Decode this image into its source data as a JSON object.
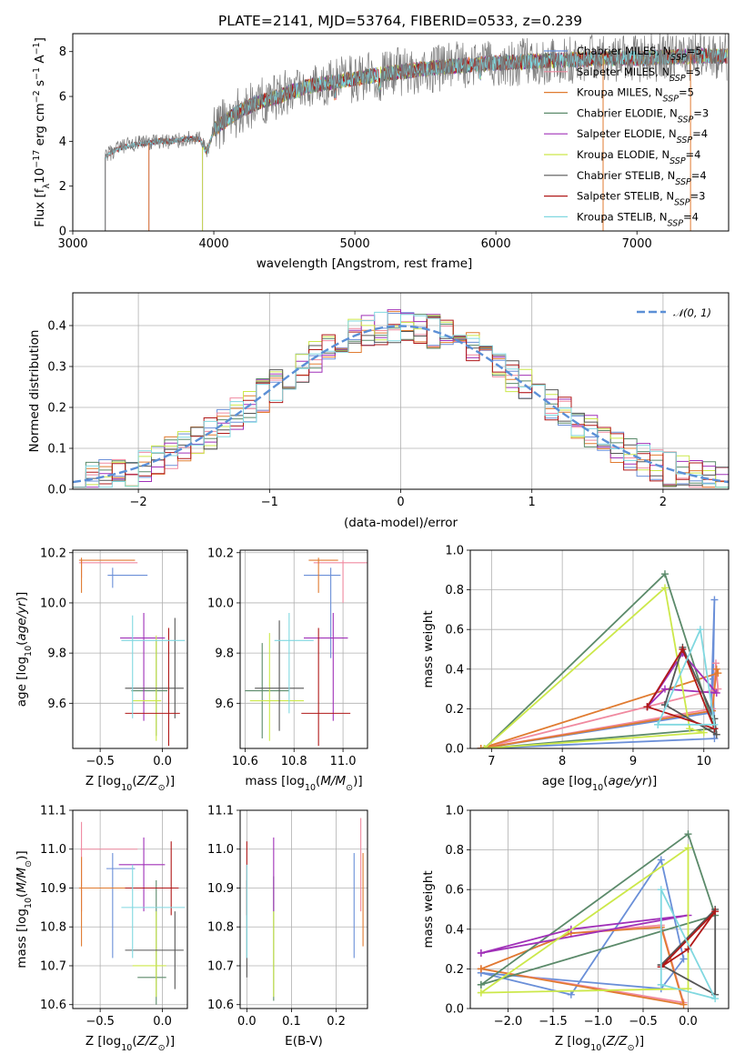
{
  "figure": {
    "title": "PLATE=2141, MJD=53764, FIBERID=0533, z=0.239"
  },
  "colors": {
    "Chabrier MILES": "#6a8fd8",
    "Salpeter MILES": "#f08aa0",
    "Kroupa MILES": "#e07b30",
    "Chabrier ELODIE": "#5b8a6a",
    "Salpeter ELODIE": "#a030b8",
    "Kroupa ELODIE": "#cce84a",
    "Chabrier STELIB": "#555555",
    "Salpeter STELIB": "#b01818",
    "Kroupa STELIB": "#80d8e0",
    "data": "#7a7a7a",
    "normal": "#5b8fd6"
  },
  "chart_data": [
    {
      "id": "spectrum",
      "type": "line",
      "title": "PLATE=2141, MJD=53764, FIBERID=0533, z=0.239",
      "xlabel": "wavelength [Angstrom, rest frame]",
      "ylabel": "Flux [f_λ 10^-17 erg cm^-2 s^-1 A^-1]",
      "xlim": [
        3000,
        7650
      ],
      "ylim": [
        0,
        8.8
      ],
      "xticks": [
        "3000",
        "4000",
        "5000",
        "6000",
        "7000"
      ],
      "yticks": [
        "0",
        "2",
        "4",
        "6",
        "8"
      ],
      "grid": false,
      "legend_position": "right",
      "legend": [
        "Chabrier MILES, N_SSP=5",
        "Salpeter MILES, N_SSP=5",
        "Kroupa MILES, N_SSP=5",
        "Chabrier ELODIE, N_SSP=3",
        "Salpeter ELODIE, N_SSP=4",
        "Kroupa ELODIE, N_SSP=4",
        "Chabrier STELIB, N_SSP=4",
        "Salpeter STELIB, N_SSP=3",
        "Kroupa STELIB, N_SSP=4"
      ],
      "continuum": {
        "wavelength": [
          3230,
          3300,
          3400,
          3500,
          3600,
          3700,
          3800,
          3900,
          3950,
          4000,
          4100,
          4200,
          4300,
          4400,
          4500,
          4600,
          4700,
          4800,
          4900,
          5000,
          5200,
          5400,
          5600,
          5800,
          6000,
          6200,
          6400,
          6600,
          6800,
          7000,
          7200,
          7400,
          7600
        ],
        "flux": [
          3.3,
          3.6,
          3.8,
          3.9,
          4.0,
          4.0,
          4.1,
          4.1,
          3.5,
          4.5,
          5.0,
          5.4,
          5.7,
          5.9,
          6.1,
          6.3,
          6.5,
          6.6,
          6.7,
          6.8,
          7.0,
          7.15,
          7.3,
          7.4,
          7.5,
          7.55,
          7.6,
          7.65,
          7.7,
          7.7,
          7.75,
          7.8,
          7.8
        ]
      },
      "model_starts": [
        {
          "series": "Chabrier MILES",
          "start": 3540
        },
        {
          "series": "Salpeter MILES",
          "start": 3540
        },
        {
          "series": "Kroupa MILES",
          "start": 3540
        },
        {
          "series": "Chabrier ELODIE",
          "start": 3920
        },
        {
          "series": "Salpeter ELODIE",
          "start": 3920
        },
        {
          "series": "Kroupa ELODIE",
          "start": 3920
        },
        {
          "series": "Chabrier STELIB",
          "start": 3230
        },
        {
          "series": "Salpeter STELIB",
          "start": 3230
        },
        {
          "series": "Kroupa STELIB",
          "start": 3230
        }
      ]
    },
    {
      "id": "residuals",
      "type": "histogram",
      "xlabel": "(data-model)/error",
      "ylabel": "Normed distribution",
      "xlim": [
        -2.5,
        2.5
      ],
      "ylim": [
        0,
        0.48
      ],
      "xticks": [
        "−2",
        "−1",
        "0",
        "1",
        "2"
      ],
      "yticks": [
        "0.0",
        "0.1",
        "0.2",
        "0.3",
        "0.4"
      ],
      "grid": true,
      "legend_position": "top-right",
      "legend": [
        "𝒩(0, 1)"
      ],
      "bins": {
        "start": -2.5,
        "width": 0.1,
        "count": 50
      }
    },
    {
      "id": "age-vs-Z",
      "type": "errorbar",
      "xlabel": "Z [log10(Z/Z⊙)]",
      "ylabel": "age  [log10(age/yr)]",
      "xlim": [
        -0.72,
        0.2
      ],
      "ylim": [
        9.42,
        10.21
      ],
      "xticks": [
        "−0.5",
        "0.0"
      ],
      "xtick_values": [
        -0.5,
        0.0
      ],
      "yticks": [
        "9.6",
        "9.8",
        "10.0",
        "10.2"
      ],
      "ytick_values": [
        9.6,
        9.8,
        10.0,
        10.2
      ],
      "grid": true,
      "points": [
        {
          "series": "Chabrier MILES",
          "x": -0.4,
          "y": 10.11,
          "x_lo": -0.44,
          "x_hi": -0.12,
          "y_lo": 10.06,
          "y_hi": 10.14
        },
        {
          "series": "Salpeter MILES",
          "x": -0.65,
          "y": 10.16,
          "x_lo": -0.67,
          "x_hi": -0.2,
          "y_lo": 10.1,
          "y_hi": 10.17
        },
        {
          "series": "Kroupa MILES",
          "x": -0.65,
          "y": 10.17,
          "x_lo": -0.67,
          "x_hi": -0.22,
          "y_lo": 10.04,
          "y_hi": 10.18
        },
        {
          "series": "Chabrier ELODIE",
          "x": -0.05,
          "y": 9.65,
          "x_lo": -0.25,
          "x_hi": 0.04,
          "y_lo": 9.47,
          "y_hi": 9.85
        },
        {
          "series": "Salpeter ELODIE",
          "x": -0.15,
          "y": 9.86,
          "x_lo": -0.34,
          "x_hi": 0.02,
          "y_lo": 9.53,
          "y_hi": 9.96
        },
        {
          "series": "Kroupa ELODIE",
          "x": -0.05,
          "y": 9.61,
          "x_lo": -0.24,
          "x_hi": -0.01,
          "y_lo": 9.45,
          "y_hi": 9.87
        },
        {
          "series": "Chabrier STELIB",
          "x": 0.1,
          "y": 9.66,
          "x_lo": -0.3,
          "x_hi": 0.17,
          "y_lo": 9.54,
          "y_hi": 9.94
        },
        {
          "series": "Salpeter STELIB",
          "x": 0.05,
          "y": 9.56,
          "x_lo": -0.3,
          "x_hi": 0.14,
          "y_lo": 9.43,
          "y_hi": 9.9
        },
        {
          "series": "Kroupa STELIB",
          "x": -0.24,
          "y": 9.85,
          "x_lo": -0.33,
          "x_hi": 0.18,
          "y_lo": 9.54,
          "y_hi": 9.95
        }
      ]
    },
    {
      "id": "age-vs-mass",
      "type": "errorbar",
      "xlabel": "mass [log10(M/M⊙)]",
      "xlim": [
        10.58,
        11.1
      ],
      "ylim": [
        9.42,
        10.21
      ],
      "xticks": [
        "10.6",
        "10.8",
        "11.0"
      ],
      "xtick_values": [
        10.6,
        10.8,
        11.0
      ],
      "yticks": [
        "9.6",
        "9.8",
        "10.0",
        "10.2"
      ],
      "ytick_values": [
        9.6,
        9.8,
        10.0,
        10.2
      ],
      "grid": true,
      "points": [
        {
          "series": "Chabrier MILES",
          "x": 10.95,
          "y": 10.11,
          "x_lo": 10.84,
          "x_hi": 10.99,
          "y_lo": 9.78,
          "y_hi": 10.14
        },
        {
          "series": "Salpeter MILES",
          "x": 11.0,
          "y": 10.16,
          "x_lo": 10.88,
          "x_hi": 11.1,
          "y_lo": 10.0,
          "y_hi": 10.17
        },
        {
          "series": "Kroupa MILES",
          "x": 10.9,
          "y": 10.17,
          "x_lo": 10.86,
          "x_hi": 10.98,
          "y_lo": 10.04,
          "y_hi": 10.18
        },
        {
          "series": "Chabrier ELODIE",
          "x": 10.67,
          "y": 9.65,
          "x_lo": 10.6,
          "x_hi": 10.78,
          "y_lo": 9.46,
          "y_hi": 9.84
        },
        {
          "series": "Salpeter ELODIE",
          "x": 10.96,
          "y": 9.86,
          "x_lo": 10.84,
          "x_hi": 11.02,
          "y_lo": 9.53,
          "y_hi": 9.96
        },
        {
          "series": "Kroupa ELODIE",
          "x": 10.7,
          "y": 9.61,
          "x_lo": 10.62,
          "x_hi": 10.84,
          "y_lo": 9.45,
          "y_hi": 9.88
        },
        {
          "series": "Chabrier STELIB",
          "x": 10.74,
          "y": 9.66,
          "x_lo": 10.64,
          "x_hi": 10.84,
          "y_lo": 9.49,
          "y_hi": 9.93
        },
        {
          "series": "Salpeter STELIB",
          "x": 10.9,
          "y": 9.56,
          "x_lo": 10.83,
          "x_hi": 11.03,
          "y_lo": 9.43,
          "y_hi": 9.9
        },
        {
          "series": "Kroupa STELIB",
          "x": 10.78,
          "y": 9.85,
          "x_lo": 10.72,
          "x_hi": 10.88,
          "y_lo": 9.56,
          "y_hi": 9.96
        }
      ]
    },
    {
      "id": "weight-vs-age",
      "type": "line",
      "xlabel": "age  [log10(age/yr)]",
      "ylabel": "mass weight",
      "xlim": [
        6.7,
        10.35
      ],
      "ylim": [
        0,
        1.0
      ],
      "xticks": [
        "7",
        "8",
        "9",
        "10"
      ],
      "xtick_values": [
        7,
        8,
        9,
        10
      ],
      "yticks": [
        "0.0",
        "0.2",
        "0.4",
        "0.6",
        "0.8",
        "1.0"
      ],
      "ytick_values": [
        0,
        0.2,
        0.4,
        0.6,
        0.8,
        1.0
      ],
      "grid": true,
      "series": [
        {
          "series": "Chabrier MILES",
          "x": [
            6.85,
            10.1,
            10.15,
            10.13,
            10.15,
            6.85
          ],
          "y": [
            0.0,
            0.18,
            0.75,
            0.35,
            0.05,
            0.0
          ]
        },
        {
          "series": "Salpeter MILES",
          "x": [
            6.85,
            10.12,
            10.17,
            10.2,
            6.85
          ],
          "y": [
            0.0,
            0.2,
            0.43,
            0.3,
            0.0
          ]
        },
        {
          "series": "Kroupa MILES",
          "x": [
            6.85,
            10.12,
            10.18,
            10.2,
            6.85
          ],
          "y": [
            0.0,
            0.19,
            0.4,
            0.38,
            0.0
          ]
        },
        {
          "series": "Chabrier ELODIE",
          "x": [
            6.9,
            9.45,
            10.15,
            6.9
          ],
          "y": [
            0.0,
            0.88,
            0.1,
            0.0
          ]
        },
        {
          "series": "Salpeter ELODIE",
          "x": [
            9.2,
            9.7,
            10.18,
            9.45,
            9.2
          ],
          "y": [
            0.21,
            0.48,
            0.28,
            0.3,
            0.21
          ]
        },
        {
          "series": "Kroupa ELODIE",
          "x": [
            6.9,
            9.45,
            9.8,
            10.0,
            6.9
          ],
          "y": [
            0.0,
            0.81,
            0.1,
            0.08,
            0.0
          ]
        },
        {
          "series": "Chabrier STELIB",
          "x": [
            9.45,
            9.7,
            10.15,
            10.18,
            9.45
          ],
          "y": [
            0.22,
            0.51,
            0.15,
            0.07,
            0.22
          ]
        },
        {
          "series": "Salpeter STELIB",
          "x": [
            9.2,
            9.7,
            10.15,
            9.2
          ],
          "y": [
            0.21,
            0.5,
            0.1,
            0.21
          ]
        },
        {
          "series": "Kroupa STELIB",
          "x": [
            9.35,
            9.95,
            10.15,
            9.35
          ],
          "y": [
            0.12,
            0.6,
            0.12,
            0.12
          ]
        }
      ]
    },
    {
      "id": "mass-vs-Z",
      "type": "errorbar",
      "xlabel": "Z [log10(Z/Z⊙)]",
      "ylabel": "mass [log10(M/M⊙)]",
      "xlim": [
        -0.72,
        0.2
      ],
      "ylim": [
        10.59,
        11.1
      ],
      "xticks": [
        "−0.5",
        "0.0"
      ],
      "xtick_values": [
        -0.5,
        0.0
      ],
      "yticks": [
        "10.6",
        "10.7",
        "10.8",
        "10.9",
        "11.0",
        "11.1"
      ],
      "ytick_values": [
        10.6,
        10.7,
        10.8,
        10.9,
        11.0,
        11.1
      ],
      "grid": true,
      "points": [
        {
          "series": "Chabrier MILES",
          "x": -0.4,
          "y": 10.95,
          "x_lo": -0.45,
          "x_hi": -0.22,
          "y_lo": 10.72,
          "y_hi": 10.99
        },
        {
          "series": "Salpeter MILES",
          "x": -0.65,
          "y": 11.0,
          "x_lo": -0.66,
          "x_hi": -0.2,
          "y_lo": 10.84,
          "y_hi": 11.07
        },
        {
          "series": "Kroupa MILES",
          "x": -0.65,
          "y": 10.9,
          "x_lo": -0.67,
          "x_hi": -0.2,
          "y_lo": 10.75,
          "y_hi": 10.98
        },
        {
          "series": "Chabrier ELODIE",
          "x": -0.05,
          "y": 10.67,
          "x_lo": -0.2,
          "x_hi": 0.03,
          "y_lo": 10.6,
          "y_hi": 10.92
        },
        {
          "series": "Salpeter ELODIE",
          "x": -0.15,
          "y": 10.96,
          "x_lo": -0.35,
          "x_hi": 0.02,
          "y_lo": 10.84,
          "y_hi": 11.03
        },
        {
          "series": "Kroupa ELODIE",
          "x": -0.05,
          "y": 10.7,
          "x_lo": -0.24,
          "x_hi": 0.03,
          "y_lo": 10.62,
          "y_hi": 10.84
        },
        {
          "series": "Chabrier STELIB",
          "x": 0.1,
          "y": 10.74,
          "x_lo": -0.3,
          "x_hi": 0.17,
          "y_lo": 10.64,
          "y_hi": 10.84
        },
        {
          "series": "Salpeter STELIB",
          "x": 0.07,
          "y": 10.9,
          "x_lo": -0.3,
          "x_hi": 0.13,
          "y_lo": 10.83,
          "y_hi": 11.02
        },
        {
          "series": "Kroupa STELIB",
          "x": -0.24,
          "y": 10.85,
          "x_lo": -0.33,
          "x_hi": 0.18,
          "y_lo": 10.72,
          "y_hi": 10.96
        }
      ]
    },
    {
      "id": "mass-vs-EBV",
      "type": "errorbar",
      "xlabel": "E(B-V)",
      "xlim": [
        -0.015,
        0.27
      ],
      "ylim": [
        10.59,
        11.1
      ],
      "xticks": [
        "0.0",
        "0.1",
        "0.2"
      ],
      "xtick_values": [
        0.0,
        0.1,
        0.2
      ],
      "yticks": [
        "10.6",
        "10.7",
        "10.8",
        "10.9",
        "11.0",
        "11.1"
      ],
      "ytick_values": [
        10.6,
        10.7,
        10.8,
        10.9,
        11.0,
        11.1
      ],
      "grid": true,
      "points": [
        {
          "series": "Chabrier MILES",
          "x": 0.24,
          "y": 10.95,
          "x_lo": 0.24,
          "x_hi": 0.24,
          "y_lo": 10.72,
          "y_hi": 10.99
        },
        {
          "series": "Salpeter MILES",
          "x": 0.255,
          "y": 11.0,
          "x_lo": 0.255,
          "x_hi": 0.255,
          "y_lo": 10.84,
          "y_hi": 11.08
        },
        {
          "series": "Kroupa MILES",
          "x": 0.26,
          "y": 10.9,
          "x_lo": 0.26,
          "x_hi": 0.26,
          "y_lo": 10.75,
          "y_hi": 10.99
        },
        {
          "series": "Chabrier ELODIE",
          "x": 0.06,
          "y": 10.67,
          "x_lo": 0.06,
          "x_hi": 0.06,
          "y_lo": 10.61,
          "y_hi": 10.93
        },
        {
          "series": "Salpeter ELODIE",
          "x": 0.06,
          "y": 10.96,
          "x_lo": 0.06,
          "x_hi": 0.06,
          "y_lo": 10.84,
          "y_hi": 11.03
        },
        {
          "series": "Kroupa ELODIE",
          "x": 0.06,
          "y": 10.7,
          "x_lo": 0.06,
          "x_hi": 0.06,
          "y_lo": 10.62,
          "y_hi": 10.84
        },
        {
          "series": "Chabrier STELIB",
          "x": 0.0,
          "y": 10.74,
          "x_lo": 0.0,
          "x_hi": 0.0,
          "y_lo": 10.67,
          "y_hi": 10.92
        },
        {
          "series": "Salpeter STELIB",
          "x": 0.0,
          "y": 10.9,
          "x_lo": 0.0,
          "x_hi": 0.0,
          "y_lo": 10.83,
          "y_hi": 11.02
        },
        {
          "series": "Kroupa STELIB",
          "x": 0.0,
          "y": 10.85,
          "x_lo": 0.0,
          "x_hi": 0.0,
          "y_lo": 10.72,
          "y_hi": 10.96
        }
      ]
    },
    {
      "id": "weight-vs-Z",
      "type": "line",
      "xlabel": "Z [log10(Z/Z⊙)]",
      "ylabel": "mass weight",
      "xlim": [
        -2.42,
        0.45
      ],
      "ylim": [
        0,
        1.0
      ],
      "xticks": [
        "−2.0",
        "−1.5",
        "−1.0",
        "−0.5",
        "0.0"
      ],
      "xtick_values": [
        -2.0,
        -1.5,
        -1.0,
        -0.5,
        0.0
      ],
      "yticks": [
        "0.0",
        "0.2",
        "0.4",
        "0.6",
        "0.8",
        "1.0"
      ],
      "ytick_values": [
        0,
        0.2,
        0.4,
        0.6,
        0.8,
        1.0
      ],
      "grid": true,
      "series": [
        {
          "series": "Chabrier MILES",
          "x": [
            -2.3,
            -1.3,
            -0.3,
            -0.05,
            -0.3,
            -2.3
          ],
          "y": [
            0.18,
            0.07,
            0.75,
            0.25,
            0.1,
            0.18
          ]
        },
        {
          "series": "Salpeter MILES",
          "x": [
            -2.3,
            -1.3,
            -0.3,
            -0.05,
            -2.3
          ],
          "y": [
            0.2,
            0.38,
            0.42,
            0.03,
            0.2
          ]
        },
        {
          "series": "Kroupa MILES",
          "x": [
            -2.3,
            -1.3,
            -0.3,
            -0.05,
            -2.3
          ],
          "y": [
            0.2,
            0.38,
            0.41,
            0.02,
            0.2
          ]
        },
        {
          "series": "Chabrier ELODIE",
          "x": [
            -2.3,
            -0.0,
            0.3,
            -2.3
          ],
          "y": [
            0.12,
            0.88,
            0.47,
            0.12
          ]
        },
        {
          "series": "Salpeter ELODIE",
          "x": [
            -2.3,
            -1.3,
            0.0,
            -2.3
          ],
          "y": [
            0.28,
            0.4,
            0.47,
            0.28
          ]
        },
        {
          "series": "Kroupa ELODIE",
          "x": [
            -2.3,
            -0.0,
            -0.0,
            -2.3
          ],
          "y": [
            0.08,
            0.81,
            0.1,
            0.08
          ]
        },
        {
          "series": "Chabrier STELIB",
          "x": [
            -0.3,
            0.3,
            0.3,
            -0.3
          ],
          "y": [
            0.22,
            0.5,
            0.07,
            0.22
          ]
        },
        {
          "series": "Salpeter STELIB",
          "x": [
            -0.3,
            0.3,
            0.0,
            -0.3
          ],
          "y": [
            0.21,
            0.49,
            0.3,
            0.21
          ]
        },
        {
          "series": "Kroupa STELIB",
          "x": [
            -0.3,
            -0.3,
            0.3,
            -0.3
          ],
          "y": [
            0.12,
            0.6,
            0.05,
            0.12
          ]
        }
      ]
    }
  ]
}
